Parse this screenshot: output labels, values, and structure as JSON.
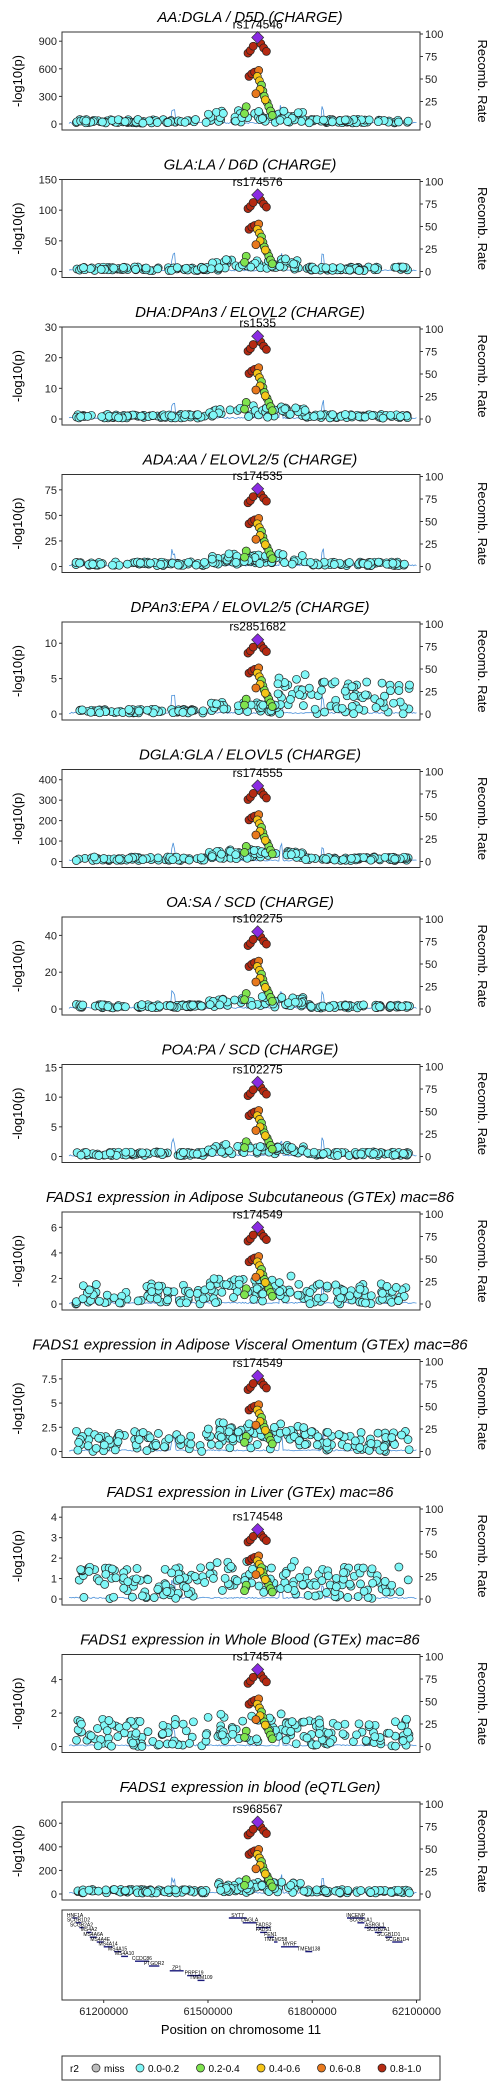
{
  "colors": {
    "miss": "#bebebe",
    "r2_0_0.2": "#7ff7f7",
    "r2_0.2_0.4": "#7fe34f",
    "r2_0.4_0.6": "#f5c518",
    "r2_0.6_0.8": "#e8791e",
    "r2_0.8_1.0": "#b52a12",
    "lead": "#8a2be2",
    "recomb": "#4a90d9"
  },
  "x_axis": {
    "label": "Position on chromosome 11",
    "ticks": [
      "61200000",
      "61500000",
      "61800000",
      "62100000"
    ],
    "tick_values": [
      61200000,
      61500000,
      61800000,
      62100000
    ],
    "range": [
      61080000,
      62110000
    ]
  },
  "y2_axis": {
    "label": "Recomb. Rate",
    "ticks": [
      "0",
      "25",
      "50",
      "75",
      "100"
    ]
  },
  "legend": {
    "title": "r2",
    "items": [
      {
        "label": "miss",
        "key": "miss"
      },
      {
        "label": "0.0-0.2",
        "key": "r2_0_0.2"
      },
      {
        "label": "0.2-0.4",
        "key": "r2_0.2_0.4"
      },
      {
        "label": "0.4-0.6",
        "key": "r2_0.4_0.6"
      },
      {
        "label": "0.6-0.8",
        "key": "r2_0.6_0.8"
      },
      {
        "label": "0.8-1.0",
        "key": "r2_0.8_1.0"
      }
    ]
  },
  "genes": [
    {
      "name": "HNF1A",
      "start": 61110000,
      "end": 61125000,
      "row": 0
    },
    {
      "name": "SCGB1D2",
      "start": 61120000,
      "end": 61135000,
      "row": 1
    },
    {
      "name": "SCGB2A2",
      "start": 61130000,
      "end": 61142000,
      "row": 2
    },
    {
      "name": "MS4A2",
      "start": 61150000,
      "end": 61165000,
      "row": 3
    },
    {
      "name": "MS4A6A",
      "start": 61160000,
      "end": 61180000,
      "row": 4
    },
    {
      "name": "MS4A4E",
      "start": 61180000,
      "end": 61200000,
      "row": 5
    },
    {
      "name": "MS4A14",
      "start": 61200000,
      "end": 61225000,
      "row": 6
    },
    {
      "name": "MS4A15",
      "start": 61230000,
      "end": 61250000,
      "row": 7
    },
    {
      "name": "MS4A10",
      "start": 61250000,
      "end": 61270000,
      "row": 8
    },
    {
      "name": "CCDC86",
      "start": 61290000,
      "end": 61330000,
      "row": 9
    },
    {
      "name": "PTGDR2",
      "start": 61330000,
      "end": 61360000,
      "row": 10
    },
    {
      "name": "ZP1",
      "start": 61390000,
      "end": 61430000,
      "row": 11
    },
    {
      "name": "PRPF19",
      "start": 61440000,
      "end": 61480000,
      "row": 12
    },
    {
      "name": "TMEM109",
      "start": 61470000,
      "end": 61490000,
      "row": 13
    },
    {
      "name": "SYT7",
      "start": 61560000,
      "end": 61610000,
      "row": 0
    },
    {
      "name": "DAGLA",
      "start": 61600000,
      "end": 61640000,
      "row": 1
    },
    {
      "name": "FADS2",
      "start": 61640000,
      "end": 61680000,
      "row": 2
    },
    {
      "name": "FADS1",
      "start": 61650000,
      "end": 61670000,
      "row": 3
    },
    {
      "name": "FEN1",
      "start": 61670000,
      "end": 61690000,
      "row": 4
    },
    {
      "name": "TMEM258",
      "start": 61690000,
      "end": 61700000,
      "row": 5
    },
    {
      "name": "MYRF",
      "start": 61710000,
      "end": 61760000,
      "row": 6
    },
    {
      "name": "TMEM138",
      "start": 61780000,
      "end": 61800000,
      "row": 7
    },
    {
      "name": "INCENP",
      "start": 61900000,
      "end": 61950000,
      "row": 0
    },
    {
      "name": "SCGB1A1",
      "start": 61930000,
      "end": 61950000,
      "row": 1
    },
    {
      "name": "ASRGL1",
      "start": 61950000,
      "end": 62010000,
      "row": 2
    },
    {
      "name": "SCGB2A1",
      "start": 61980000,
      "end": 62000000,
      "row": 3
    },
    {
      "name": "SCGB1D1",
      "start": 62010000,
      "end": 62030000,
      "row": 4
    },
    {
      "name": "SCGB1D4",
      "start": 62030000,
      "end": 62060000,
      "row": 5
    }
  ],
  "chart_data": [
    {
      "type": "scatter",
      "title": "AA:DGLA / D5D (CHARGE)",
      "lead_snp": "rs174546",
      "ylabel": "-log10(p)",
      "y2label": "Recomb. Rate",
      "ylim": [
        0,
        1000
      ],
      "yticks": [
        0,
        300,
        600,
        900
      ],
      "lead_y": 940,
      "profile": "eqtl_fads"
    },
    {
      "type": "scatter",
      "title": "GLA:LA / D6D (CHARGE)",
      "lead_snp": "rs174576",
      "ylabel": "-log10(p)",
      "y2label": "Recomb. Rate",
      "ylim": [
        0,
        150
      ],
      "yticks": [
        0,
        50,
        100,
        150
      ],
      "lead_y": 125,
      "profile": "d6d"
    },
    {
      "type": "scatter",
      "title": "DHA:DPAn3 / ELOVL2 (CHARGE)",
      "lead_snp": "rs1535",
      "ylabel": "-log10(p)",
      "y2label": "Recomb. Rate",
      "ylim": [
        0,
        30
      ],
      "yticks": [
        0,
        10,
        20,
        30
      ],
      "lead_y": 27,
      "profile": "d6d"
    },
    {
      "type": "scatter",
      "title": "ADA:AA / ELOVL2/5 (CHARGE)",
      "lead_snp": "rs174535",
      "ylabel": "-log10(p)",
      "y2label": "Recomb. Rate",
      "ylim": [
        0,
        90
      ],
      "yticks": [
        0,
        25,
        50,
        75
      ],
      "lead_y": 76,
      "profile": "d5d"
    },
    {
      "type": "scatter",
      "title": "DPAn3:EPA / ELOVL2/5 (CHARGE)",
      "lead_snp": "rs2851682",
      "ylabel": "-log10(p)",
      "y2label": "Recomb. Rate",
      "ylim": [
        0,
        13
      ],
      "yticks": [
        0,
        5,
        10
      ],
      "lead_y": 10.5,
      "profile": "dpa"
    },
    {
      "type": "scatter",
      "title": "DGLA:GLA / ELOVL5 (CHARGE)",
      "lead_snp": "rs174555",
      "ylabel": "-log10(p)",
      "y2label": "Recomb. Rate",
      "ylim": [
        0,
        450
      ],
      "yticks": [
        0,
        100,
        200,
        300,
        400
      ],
      "lead_y": 370,
      "profile": "dgla"
    },
    {
      "type": "scatter",
      "title": "OA:SA / SCD (CHARGE)",
      "lead_snp": "rs102275",
      "ylabel": "-log10(p)",
      "y2label": "Recomb. Rate",
      "ylim": [
        0,
        50
      ],
      "yticks": [
        0,
        20,
        40
      ],
      "lead_y": 42,
      "profile": "d5d"
    },
    {
      "type": "scatter",
      "title": "POA:PA / SCD (CHARGE)",
      "lead_snp": "rs102275",
      "ylabel": "-log10(p)",
      "y2label": "Recomb. Rate",
      "ylim": [
        0,
        15.5
      ],
      "yticks": [
        0,
        5,
        10,
        15
      ],
      "lead_y": 12.5,
      "profile": "d5d"
    },
    {
      "type": "scatter",
      "title": "FADS1 expression in Adipose Subcutaneous (GTEx) mac=86",
      "lead_snp": "rs174549",
      "ylabel": "-log10(p)",
      "y2label": "Recomb. Rate",
      "ylim": [
        0,
        7.2
      ],
      "yticks": [
        0,
        2,
        4,
        6
      ],
      "lead_y": 6.0,
      "profile": "gtex"
    },
    {
      "type": "scatter",
      "title": "FADS1 expression in Adipose Visceral Omentum (GTEx) mac=86",
      "lead_snp": "rs174549",
      "ylabel": "-log10(p)",
      "y2label": "Recomb. Rate",
      "ylim": [
        0,
        9.5
      ],
      "yticks": [
        0,
        2.5,
        5,
        7.5
      ],
      "lead_y": 7.8,
      "profile": "gtex"
    },
    {
      "type": "scatter",
      "title": "FADS1 expression in Liver (GTEx) mac=86",
      "lead_snp": "rs174548",
      "ylabel": "-log10(p)",
      "y2label": "Recomb. Rate",
      "ylim": [
        0,
        4.5
      ],
      "yticks": [
        0,
        1,
        2,
        3,
        4
      ],
      "lead_y": 3.4,
      "profile": "liver"
    },
    {
      "type": "scatter",
      "title": "FADS1 expression in Whole Blood (GTEx) mac=86",
      "lead_snp": "rs174574",
      "ylabel": "-log10(p)",
      "y2label": "Recomb. Rate",
      "ylim": [
        0,
        5.5
      ],
      "yticks": [
        0,
        2,
        4
      ],
      "lead_y": 4.6,
      "profile": "blood"
    },
    {
      "type": "scatter",
      "title": "FADS1 expression in blood (eQTLGen)",
      "lead_snp": "rs968567",
      "ylabel": "-log10(p)",
      "y2label": "Recomb. Rate",
      "ylim": [
        0,
        780
      ],
      "yticks": [
        0,
        200,
        400,
        600
      ],
      "lead_y": 610,
      "profile": "eqtlgen"
    }
  ]
}
